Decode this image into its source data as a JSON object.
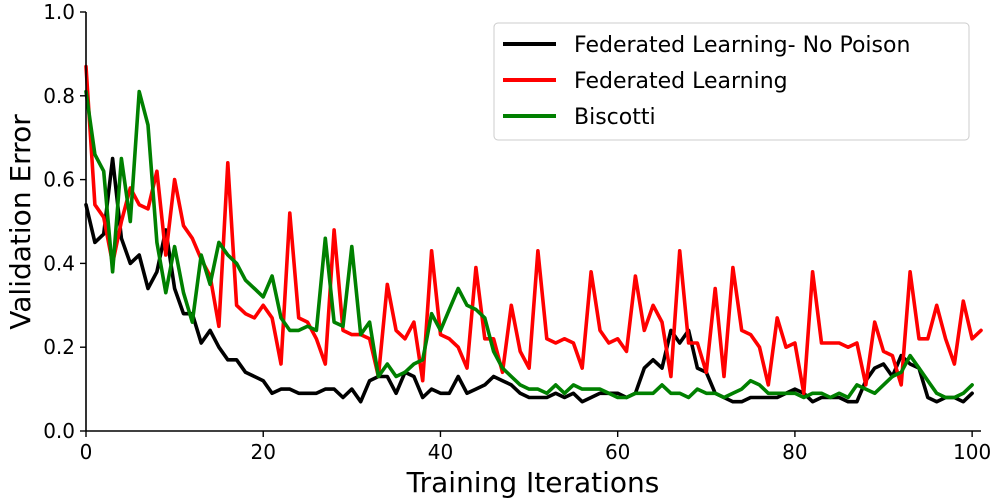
{
  "chart_data": {
    "type": "line",
    "title": "",
    "xlabel": "Training Iterations",
    "ylabel": "Validation Error",
    "xlim": [
      0,
      101
    ],
    "ylim": [
      0.0,
      1.0
    ],
    "xticks": [
      "0",
      "20",
      "40",
      "60",
      "80",
      "100"
    ],
    "yticks": [
      "0.0",
      "0.2",
      "0.4",
      "0.6",
      "0.8",
      "1.0"
    ],
    "grid": false,
    "legend_position": "top-right",
    "series": [
      {
        "name": "Federated Learning- No Poison",
        "color": "#000000",
        "values": [
          0.54,
          0.45,
          0.47,
          0.65,
          0.46,
          0.4,
          0.42,
          0.34,
          0.38,
          0.48,
          0.34,
          0.28,
          0.28,
          0.21,
          0.24,
          0.2,
          0.17,
          0.17,
          0.14,
          0.13,
          0.12,
          0.09,
          0.1,
          0.1,
          0.09,
          0.09,
          0.09,
          0.1,
          0.1,
          0.08,
          0.1,
          0.07,
          0.12,
          0.13,
          0.13,
          0.09,
          0.14,
          0.13,
          0.08,
          0.1,
          0.09,
          0.09,
          0.13,
          0.09,
          0.1,
          0.11,
          0.13,
          0.12,
          0.11,
          0.09,
          0.08,
          0.08,
          0.08,
          0.09,
          0.08,
          0.09,
          0.07,
          0.08,
          0.09,
          0.09,
          0.09,
          0.08,
          0.09,
          0.15,
          0.17,
          0.15,
          0.24,
          0.21,
          0.24,
          0.15,
          0.14,
          0.09,
          0.08,
          0.07,
          0.07,
          0.08,
          0.08,
          0.08,
          0.08,
          0.09,
          0.1,
          0.09,
          0.07,
          0.08,
          0.08,
          0.08,
          0.07,
          0.07,
          0.12,
          0.15,
          0.16,
          0.13,
          0.18,
          0.16,
          0.15,
          0.08,
          0.07,
          0.08,
          0.08,
          0.07,
          0.09
        ]
      },
      {
        "name": "Federated Learning",
        "color": "#ff0000",
        "values": [
          0.87,
          0.54,
          0.51,
          0.4,
          0.5,
          0.58,
          0.54,
          0.53,
          0.62,
          0.42,
          0.6,
          0.49,
          0.46,
          0.41,
          0.37,
          0.25,
          0.64,
          0.3,
          0.28,
          0.27,
          0.3,
          0.27,
          0.16,
          0.52,
          0.27,
          0.26,
          0.22,
          0.16,
          0.48,
          0.24,
          0.23,
          0.23,
          0.22,
          0.13,
          0.35,
          0.24,
          0.22,
          0.26,
          0.12,
          0.43,
          0.23,
          0.22,
          0.2,
          0.15,
          0.39,
          0.22,
          0.22,
          0.14,
          0.3,
          0.19,
          0.15,
          0.43,
          0.22,
          0.21,
          0.22,
          0.21,
          0.15,
          0.38,
          0.24,
          0.21,
          0.22,
          0.19,
          0.37,
          0.24,
          0.3,
          0.26,
          0.13,
          0.43,
          0.21,
          0.21,
          0.14,
          0.34,
          0.13,
          0.39,
          0.24,
          0.23,
          0.2,
          0.11,
          0.27,
          0.2,
          0.21,
          0.09,
          0.38,
          0.21,
          0.21,
          0.21,
          0.2,
          0.21,
          0.11,
          0.26,
          0.19,
          0.18,
          0.11,
          0.38,
          0.22,
          0.22,
          0.3,
          0.22,
          0.16,
          0.31,
          0.22,
          0.24
        ]
      },
      {
        "name": "Biscotti",
        "color": "#008000",
        "values": [
          0.81,
          0.66,
          0.62,
          0.38,
          0.65,
          0.5,
          0.81,
          0.73,
          0.45,
          0.33,
          0.44,
          0.33,
          0.26,
          0.42,
          0.35,
          0.45,
          0.42,
          0.4,
          0.36,
          0.34,
          0.32,
          0.37,
          0.27,
          0.24,
          0.24,
          0.25,
          0.24,
          0.46,
          0.26,
          0.25,
          0.44,
          0.23,
          0.26,
          0.13,
          0.16,
          0.13,
          0.14,
          0.16,
          0.17,
          0.28,
          0.24,
          0.29,
          0.34,
          0.3,
          0.29,
          0.27,
          0.19,
          0.15,
          0.13,
          0.11,
          0.1,
          0.1,
          0.09,
          0.11,
          0.09,
          0.11,
          0.1,
          0.1,
          0.1,
          0.09,
          0.08,
          0.08,
          0.09,
          0.09,
          0.09,
          0.11,
          0.09,
          0.09,
          0.08,
          0.1,
          0.09,
          0.09,
          0.08,
          0.09,
          0.1,
          0.12,
          0.11,
          0.09,
          0.09,
          0.09,
          0.09,
          0.08,
          0.09,
          0.09,
          0.08,
          0.09,
          0.08,
          0.11,
          0.1,
          0.09,
          0.11,
          0.13,
          0.14,
          0.18,
          0.15,
          0.12,
          0.09,
          0.08,
          0.08,
          0.09,
          0.11
        ]
      }
    ]
  }
}
